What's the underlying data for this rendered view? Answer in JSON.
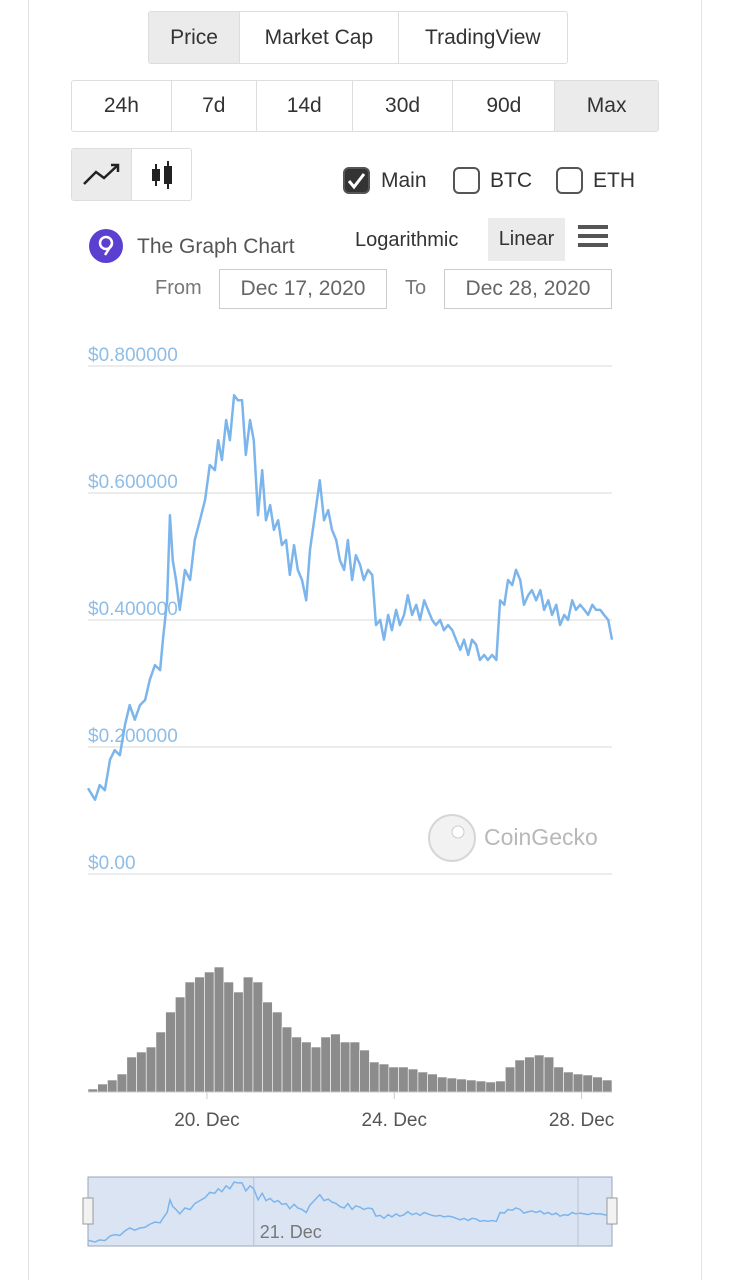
{
  "tabs": [
    "Price",
    "Market Cap",
    "TradingView"
  ],
  "ranges": [
    "24h",
    "7d",
    "14d",
    "30d",
    "90d",
    "Max"
  ],
  "toggles": [
    "Main",
    "BTC",
    "ETH"
  ],
  "title": "The Graph Chart",
  "scale_options": [
    "Logarithmic",
    "Linear"
  ],
  "from_label": "From",
  "from_date": "Dec 17, 2020",
  "to_label": "To",
  "to_date": "Dec 28, 2020",
  "watermark": "CoinGecko",
  "chart_data": {
    "type": "line",
    "color": "#7cb5ec",
    "x": [
      17.46,
      17.61,
      17.71,
      17.82,
      17.93,
      18.03,
      18.14,
      18.25,
      18.35,
      18.46,
      18.57,
      18.68,
      18.78,
      18.89,
      19.0,
      19.06,
      19.15,
      19.21,
      19.27,
      19.34,
      19.42,
      19.53,
      19.64,
      19.74,
      19.85,
      19.96,
      20.06,
      20.17,
      20.24,
      20.32,
      20.41,
      20.49,
      20.58,
      20.66,
      20.75,
      20.83,
      20.92,
      21.0,
      21.09,
      21.18,
      21.26,
      21.35,
      21.43,
      21.52,
      21.6,
      21.69,
      21.77,
      21.86,
      21.94,
      22.03,
      22.12,
      22.2,
      22.29,
      22.41,
      22.5,
      22.59,
      22.67,
      22.76,
      22.84,
      22.93,
      23.01,
      23.1,
      23.18,
      23.27,
      23.35,
      23.44,
      23.53,
      23.61,
      23.7,
      23.78,
      23.87,
      23.95,
      24.04,
      24.12,
      24.21,
      24.29,
      24.38,
      24.47,
      24.55,
      24.64,
      24.72,
      24.81,
      24.89,
      24.98,
      25.06,
      25.15,
      25.24,
      25.32,
      25.41,
      25.49,
      25.58,
      25.66,
      25.75,
      25.83,
      25.92,
      26.0,
      26.09,
      26.18,
      26.26,
      26.35,
      26.43,
      26.52,
      26.6,
      26.69,
      26.77,
      26.86,
      26.94,
      27.03,
      27.12,
      27.2,
      27.29,
      27.37,
      27.46,
      27.54,
      27.63,
      27.71,
      27.8,
      27.88,
      27.97,
      28.06,
      28.14,
      28.23,
      28.31,
      28.4,
      28.48,
      28.57,
      28.65
    ],
    "values": [
      0.135,
      0.117,
      0.14,
      0.132,
      0.18,
      0.195,
      0.187,
      0.235,
      0.266,
      0.243,
      0.266,
      0.274,
      0.306,
      0.329,
      0.321,
      0.369,
      0.431,
      0.565,
      0.494,
      0.463,
      0.416,
      0.479,
      0.463,
      0.526,
      0.557,
      0.589,
      0.644,
      0.636,
      0.683,
      0.652,
      0.715,
      0.683,
      0.754,
      0.746,
      0.746,
      0.66,
      0.715,
      0.683,
      0.565,
      0.636,
      0.557,
      0.581,
      0.542,
      0.557,
      0.518,
      0.526,
      0.471,
      0.518,
      0.479,
      0.463,
      0.431,
      0.51,
      0.557,
      0.62,
      0.557,
      0.573,
      0.542,
      0.526,
      0.494,
      0.479,
      0.526,
      0.463,
      0.502,
      0.487,
      0.463,
      0.479,
      0.471,
      0.392,
      0.4,
      0.369,
      0.408,
      0.384,
      0.416,
      0.392,
      0.408,
      0.439,
      0.408,
      0.424,
      0.4,
      0.431,
      0.416,
      0.4,
      0.392,
      0.4,
      0.384,
      0.392,
      0.384,
      0.369,
      0.353,
      0.369,
      0.345,
      0.369,
      0.361,
      0.337,
      0.345,
      0.337,
      0.345,
      0.337,
      0.431,
      0.424,
      0.463,
      0.455,
      0.479,
      0.463,
      0.424,
      0.439,
      0.447,
      0.431,
      0.447,
      0.416,
      0.431,
      0.408,
      0.424,
      0.392,
      0.408,
      0.4,
      0.431,
      0.416,
      0.424,
      0.416,
      0.408,
      0.424,
      0.416,
      0.416,
      0.408,
      0.4,
      0.369
    ],
    "xlim": [
      17.46,
      28.65
    ],
    "ylim": [
      0,
      0.8
    ],
    "yticks": [
      {
        "value": 0,
        "label": "$0.00"
      },
      {
        "value": 0.2,
        "label": "$0.200000"
      },
      {
        "value": 0.4,
        "label": "$0.400000"
      },
      {
        "value": 0.6,
        "label": "$0.600000"
      },
      {
        "value": 0.8,
        "label": "$0.800000"
      }
    ],
    "grid": true,
    "xticks": [
      {
        "value": 20,
        "label": "20. Dec"
      },
      {
        "value": 24,
        "label": "24. Dec"
      },
      {
        "value": 28,
        "label": "28. Dec"
      }
    ],
    "volume": {
      "color": "#8c8c8c",
      "values": [
        3,
        8,
        12,
        18,
        35,
        40,
        45,
        60,
        80,
        95,
        110,
        115,
        120,
        125,
        110,
        100,
        115,
        110,
        90,
        80,
        65,
        55,
        50,
        45,
        55,
        58,
        50,
        50,
        42,
        30,
        28,
        25,
        25,
        23,
        20,
        18,
        15,
        14,
        13,
        12,
        11,
        10,
        11,
        25,
        32,
        35,
        37,
        35,
        25,
        20,
        18,
        17,
        15,
        12
      ]
    },
    "navigator": {
      "xticks": [
        {
          "value": 21,
          "label": "21. Dec"
        }
      ]
    }
  }
}
